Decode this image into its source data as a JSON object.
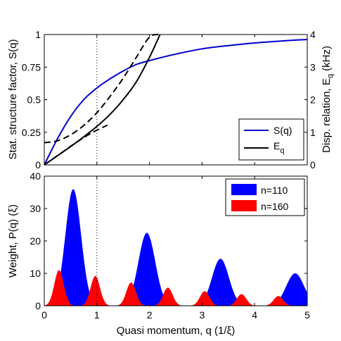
{
  "chart_data": [
    {
      "type": "line",
      "panel": "top",
      "xlabel": "",
      "ylabel_left": "Stat. structure factor, S(q)",
      "ylabel_right": "Disp. relation, E_q (kHz)",
      "xlim": [
        0,
        5
      ],
      "ylim_left": [
        0,
        1
      ],
      "ylim_right": [
        0,
        4
      ],
      "xticks": [
        0,
        1,
        2,
        3,
        4,
        5
      ],
      "yticks_left": [
        0,
        0.25,
        0.5,
        0.75,
        1
      ],
      "yticks_left_labels": [
        "0",
        "0.25",
        "0.5",
        "0.75",
        "1"
      ],
      "yticks_right": [
        0,
        1,
        2,
        3,
        4
      ],
      "vline_x": 1,
      "legend_position": "bottom-right",
      "series": [
        {
          "name": "S(q)",
          "axis": "left",
          "color": "#0000cc",
          "x": [
            0,
            0.25,
            0.5,
            0.75,
            1,
            1.25,
            1.5,
            1.75,
            2,
            2.5,
            3,
            3.5,
            4,
            4.5,
            5
          ],
          "y": [
            0,
            0.2,
            0.37,
            0.5,
            0.59,
            0.66,
            0.72,
            0.77,
            0.8,
            0.85,
            0.89,
            0.915,
            0.935,
            0.95,
            0.962
          ]
        },
        {
          "name": "E_q",
          "axis": "right",
          "color": "#000000",
          "x": [
            0,
            0.25,
            0.5,
            0.75,
            1,
            1.25,
            1.5,
            1.75,
            2,
            2.2
          ],
          "y": [
            0,
            0.28,
            0.56,
            0.86,
            1.18,
            1.55,
            2.0,
            2.55,
            3.3,
            4.0
          ]
        },
        {
          "name": "",
          "axis": "right",
          "style": "dashed",
          "color": "#000000",
          "x": [
            0,
            0.25,
            0.5,
            0.75,
            1,
            1.25,
            1.5,
            1.75,
            2,
            2.2
          ],
          "y": [
            0.68,
            0.74,
            0.92,
            1.21,
            1.6,
            2.1,
            2.66,
            3.3,
            3.92,
            4.0
          ]
        },
        {
          "name": "",
          "axis": "right",
          "style": "dashed",
          "color": "#000000",
          "x": [
            0,
            0.3,
            0.6,
            0.9,
            1.2
          ],
          "y": [
            0,
            0.34,
            0.68,
            0.98,
            1.22
          ]
        }
      ]
    },
    {
      "type": "area",
      "panel": "bottom",
      "xlabel": "Quasi momentum, q (1/ξ)",
      "ylabel": "Weight, P(q) (ξ)",
      "xlim": [
        0,
        5
      ],
      "ylim": [
        0,
        40
      ],
      "xticks": [
        0,
        1,
        2,
        3,
        4,
        5
      ],
      "yticks": [
        0,
        10,
        20,
        30,
        40
      ],
      "vline_x": 1,
      "legend_position": "top-right",
      "series": [
        {
          "name": "n=110",
          "color": "#0000ff",
          "peaks": [
            {
              "center": 0.55,
              "height": 36,
              "width": 0.15
            },
            {
              "center": 1.95,
              "height": 22.5,
              "width": 0.16
            },
            {
              "center": 3.35,
              "height": 14.5,
              "width": 0.16
            },
            {
              "center": 4.77,
              "height": 10,
              "width": 0.17
            }
          ]
        },
        {
          "name": "n=160",
          "color": "#ff0000",
          "peaks": [
            {
              "center": 0.28,
              "height": 11,
              "width": 0.09
            },
            {
              "center": 0.97,
              "height": 9.2,
              "width": 0.09
            },
            {
              "center": 1.65,
              "height": 7.2,
              "width": 0.09
            },
            {
              "center": 2.35,
              "height": 5.6,
              "width": 0.09
            },
            {
              "center": 3.05,
              "height": 4.5,
              "width": 0.09
            },
            {
              "center": 3.75,
              "height": 3.6,
              "width": 0.09
            },
            {
              "center": 4.45,
              "height": 3,
              "width": 0.09
            }
          ]
        }
      ]
    }
  ]
}
